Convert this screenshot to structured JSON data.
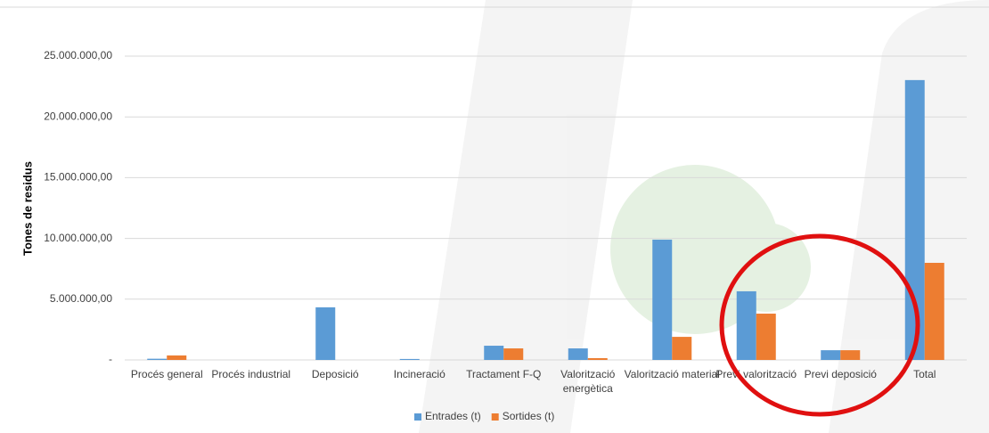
{
  "chart_data": {
    "type": "bar",
    "y_label": "Tones de residus",
    "categories": [
      "Procés general",
      "Procés industrial",
      "Deposició",
      "Incineració",
      "Tractament F-Q",
      "Valorització energètica",
      "Valorització material",
      "Previ valorització",
      "Previ deposició",
      "Total"
    ],
    "series": [
      {
        "name": "Entrades (t)",
        "color": "#5b9bd5",
        "values": [
          100000,
          0,
          4330000,
          80000,
          1170000,
          950000,
          9900000,
          5650000,
          800000,
          23030000
        ]
      },
      {
        "name": "Sortides (t)",
        "color": "#ed7d31",
        "values": [
          370000,
          0,
          0,
          0,
          950000,
          150000,
          1900000,
          3810000,
          800000,
          7990000
        ]
      }
    ],
    "ylim": [
      0,
      25000000
    ],
    "yticks": [
      {
        "value": 0,
        "label": "-"
      },
      {
        "value": 5000000,
        "label": "5.000.000,00"
      },
      {
        "value": 10000000,
        "label": "10.000.000,00"
      },
      {
        "value": 15000000,
        "label": "15.000.000,00"
      },
      {
        "value": 20000000,
        "label": "20.000.000,00"
      },
      {
        "value": 25000000,
        "label": "25.000.000,00"
      }
    ],
    "grid": true,
    "legend": "bottom"
  }
}
